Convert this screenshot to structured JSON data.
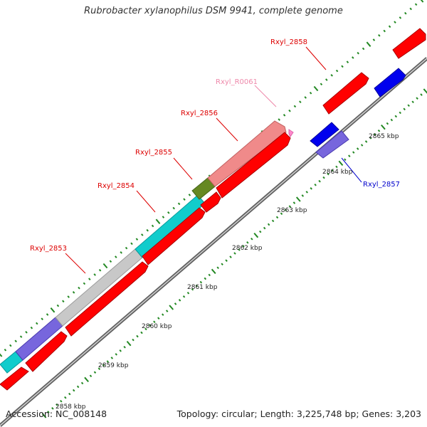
{
  "title": "Rubrobacter xylanophilus DSM 9941, complete genome",
  "accession": "Accession: NC_008148",
  "stats": "Topology: circular; Length: 3,225,748 bp; Genes: 3,203",
  "gene_labels": [
    {
      "name": "Rxyl_2858",
      "color": "#dd0000"
    },
    {
      "name": "Rxyl_R0061",
      "color": "#ee88aa"
    },
    {
      "name": "Rxyl_2856",
      "color": "#dd0000"
    },
    {
      "name": "Rxyl_2855",
      "color": "#dd0000"
    },
    {
      "name": "Rxyl_2854",
      "color": "#dd0000"
    },
    {
      "name": "Rxyl_2853",
      "color": "#dd0000"
    },
    {
      "name": "Rxyl_2857",
      "color": "#0000cc"
    }
  ],
  "kbp_labels": [
    "2865 kbp",
    "2864 kbp",
    "2863 kbp",
    "2862 kbp",
    "2861 kbp",
    "2860 kbp",
    "2859 kbp",
    "2858 kbp"
  ],
  "colors": {
    "backbone": "#808080",
    "cds": "#ff0000",
    "rrna": "#f08a8a",
    "trna": "#ff88cc",
    "blue_gene": "#0000ee",
    "purple_gene": "#7766dd",
    "cyan_gene": "#11cccc",
    "olive_gene": "#668822",
    "grey_gene": "#c8c8c8",
    "tick": "#228822"
  }
}
